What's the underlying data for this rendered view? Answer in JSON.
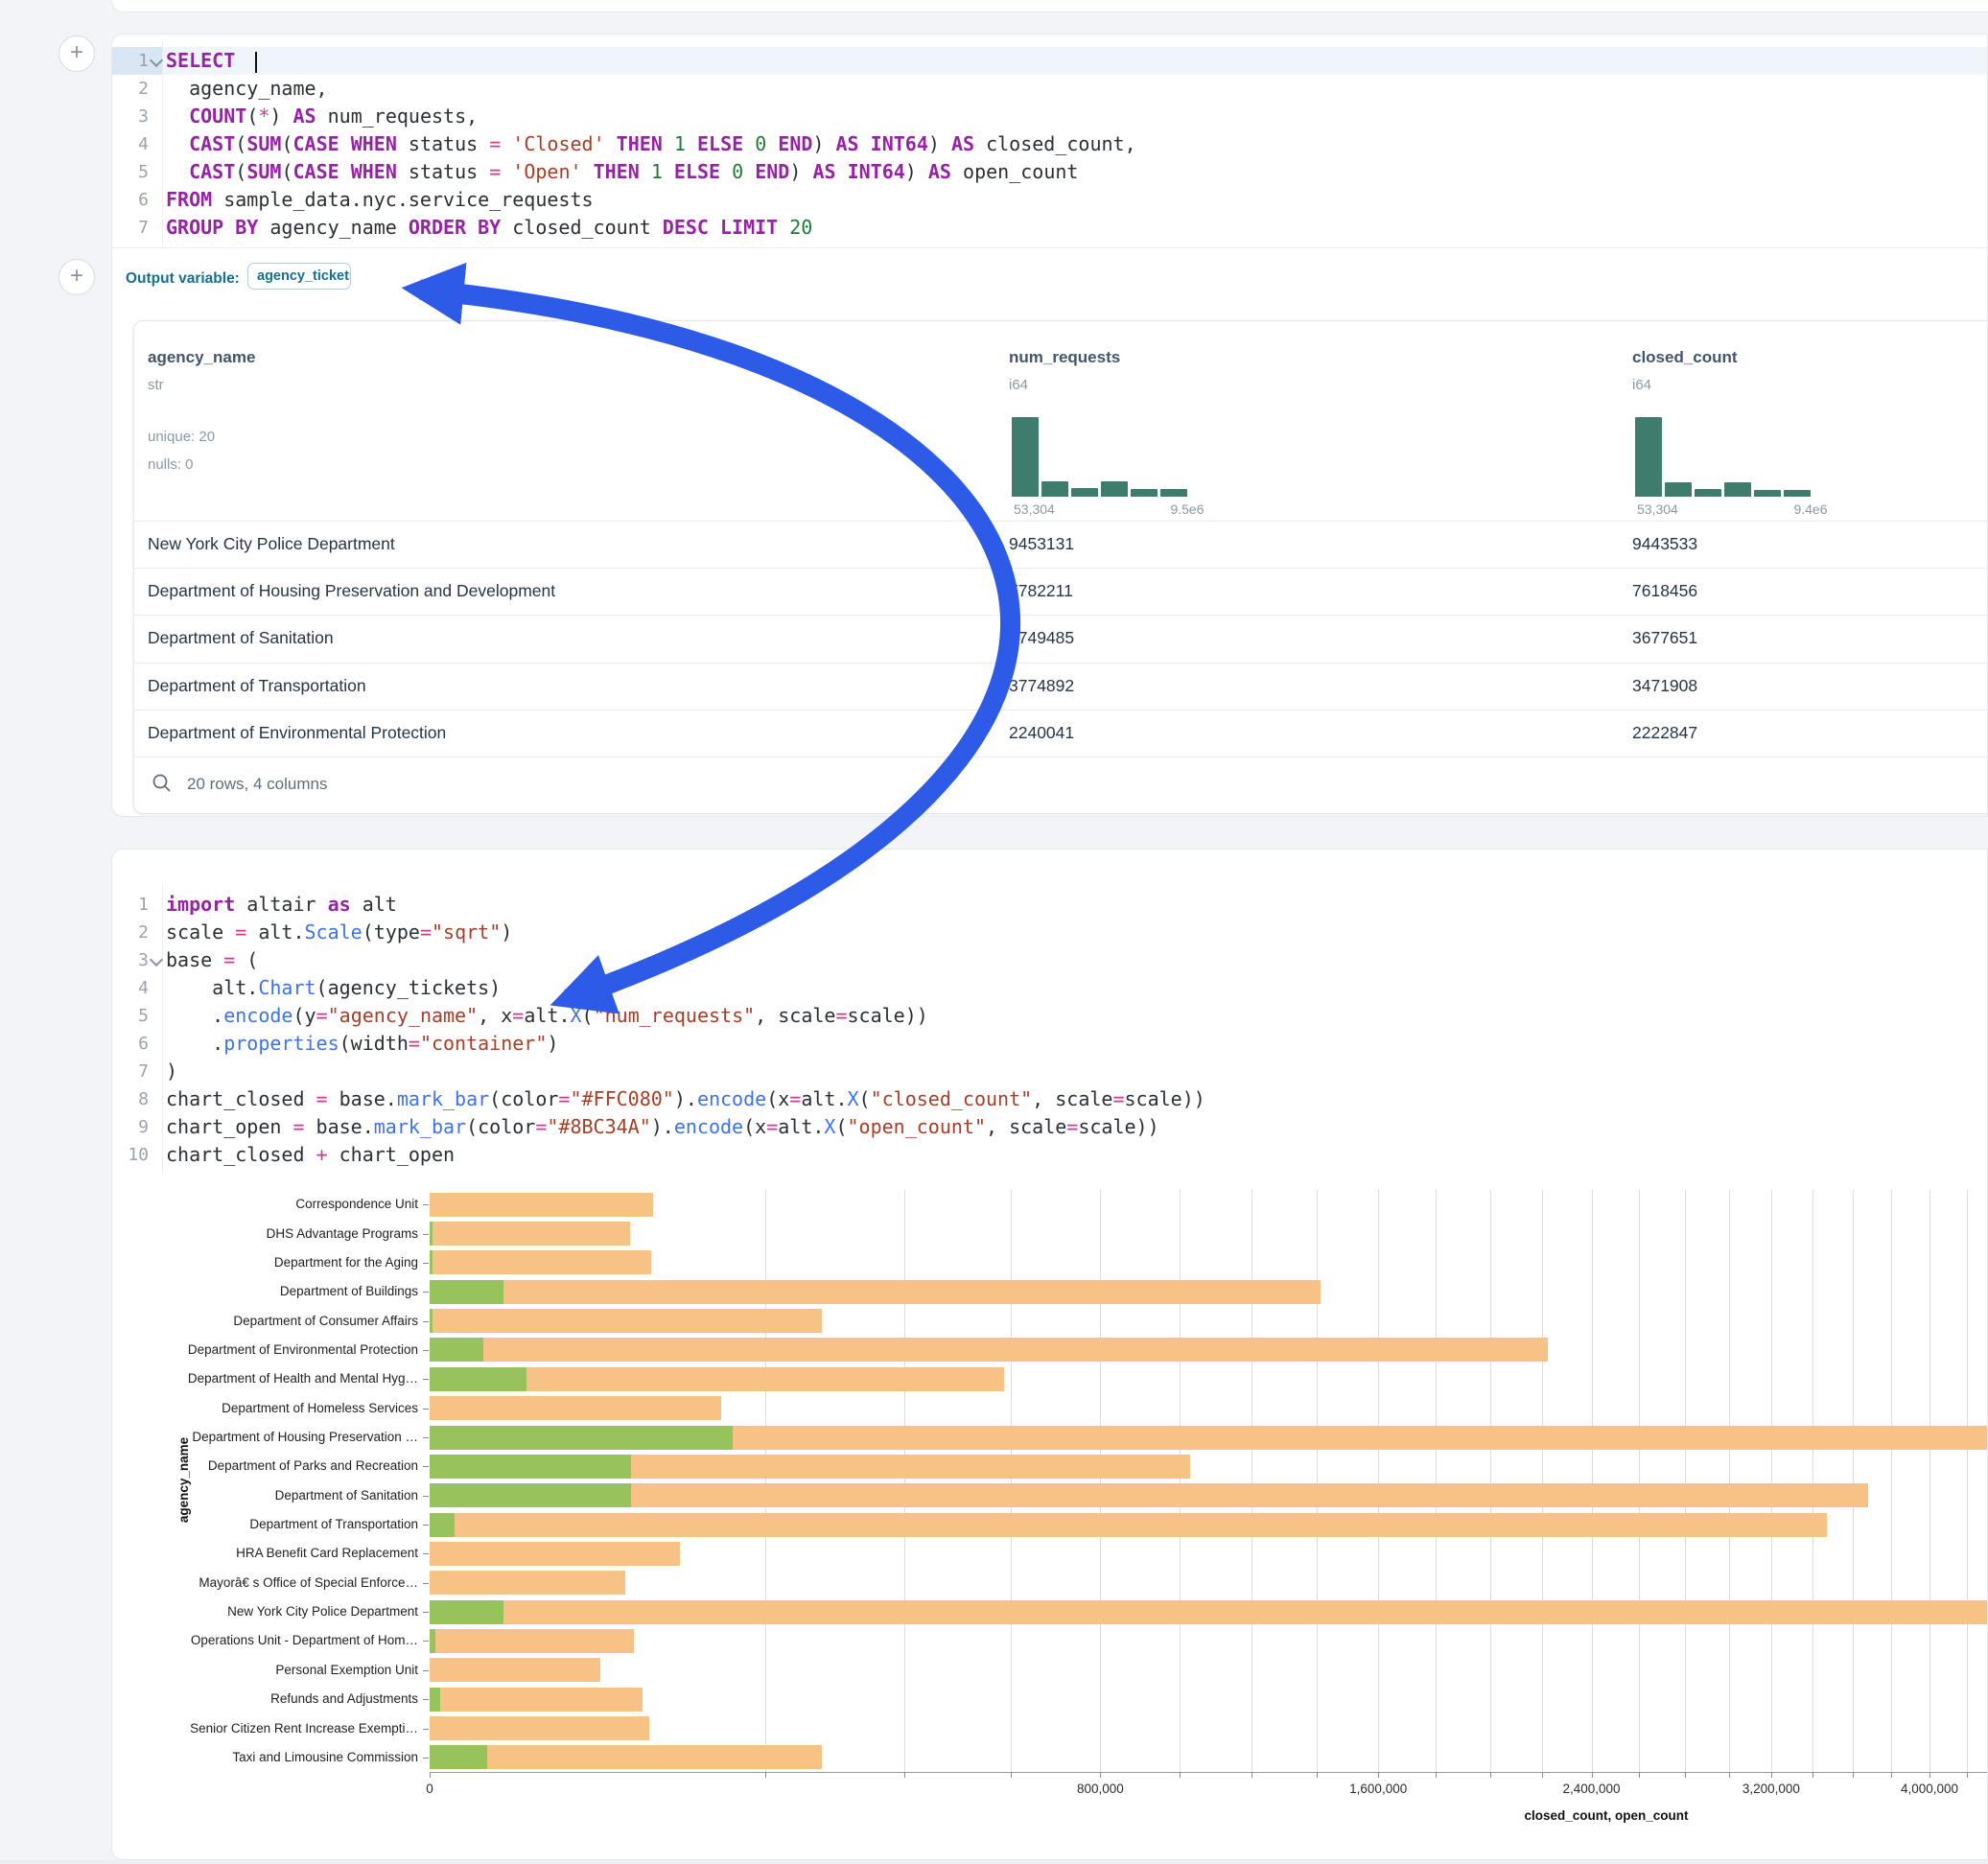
{
  "colors": {
    "page_bg": "#F2F4F7",
    "accent_arrow_blue": "#2D5BE7",
    "output_var_teal": "#14708E",
    "histogram_teal": "#3E7D6E",
    "bar_closed_rendered": "#F6C286",
    "bar_open_rendered": "#98C35C",
    "code_keyword": "#9623A5",
    "code_function": "#3E73E8",
    "code_string": "#A73E28",
    "code_number": "#1F7A38"
  },
  "add_buttons": {
    "label": "+"
  },
  "sql_cell": {
    "lines": [
      [
        [
          "kw",
          "SELECT"
        ],
        [
          "pl",
          " "
        ],
        [
          "cur",
          ""
        ]
      ],
      [
        [
          "pl",
          "  agency_name,"
        ]
      ],
      [
        [
          "pl",
          "  "
        ],
        [
          "kw",
          "COUNT"
        ],
        [
          "pl",
          "("
        ],
        [
          "op",
          "*"
        ],
        [
          "pl",
          ") "
        ],
        [
          "kw",
          "AS"
        ],
        [
          "pl",
          " num_requests,"
        ]
      ],
      [
        [
          "pl",
          "  "
        ],
        [
          "kw",
          "CAST"
        ],
        [
          "pl",
          "("
        ],
        [
          "kw",
          "SUM"
        ],
        [
          "pl",
          "("
        ],
        [
          "kw",
          "CASE"
        ],
        [
          "pl",
          " "
        ],
        [
          "kw",
          "WHEN"
        ],
        [
          "pl",
          " status "
        ],
        [
          "op",
          "="
        ],
        [
          "pl",
          " "
        ],
        [
          "str",
          "'Closed'"
        ],
        [
          "pl",
          " "
        ],
        [
          "kw",
          "THEN"
        ],
        [
          "pl",
          " "
        ],
        [
          "num",
          "1"
        ],
        [
          "pl",
          " "
        ],
        [
          "kw",
          "ELSE"
        ],
        [
          "pl",
          " "
        ],
        [
          "num",
          "0"
        ],
        [
          "pl",
          " "
        ],
        [
          "kw",
          "END"
        ],
        [
          "pl",
          ") "
        ],
        [
          "kw",
          "AS"
        ],
        [
          "pl",
          " "
        ],
        [
          "kw",
          "INT64"
        ],
        [
          "pl",
          ") "
        ],
        [
          "kw",
          "AS"
        ],
        [
          "pl",
          " closed_count,"
        ]
      ],
      [
        [
          "pl",
          "  "
        ],
        [
          "kw",
          "CAST"
        ],
        [
          "pl",
          "("
        ],
        [
          "kw",
          "SUM"
        ],
        [
          "pl",
          "("
        ],
        [
          "kw",
          "CASE"
        ],
        [
          "pl",
          " "
        ],
        [
          "kw",
          "WHEN"
        ],
        [
          "pl",
          " status "
        ],
        [
          "op",
          "="
        ],
        [
          "pl",
          " "
        ],
        [
          "str",
          "'Open'"
        ],
        [
          "pl",
          " "
        ],
        [
          "kw",
          "THEN"
        ],
        [
          "pl",
          " "
        ],
        [
          "num",
          "1"
        ],
        [
          "pl",
          " "
        ],
        [
          "kw",
          "ELSE"
        ],
        [
          "pl",
          " "
        ],
        [
          "num",
          "0"
        ],
        [
          "pl",
          " "
        ],
        [
          "kw",
          "END"
        ],
        [
          "pl",
          ") "
        ],
        [
          "kw",
          "AS"
        ],
        [
          "pl",
          " "
        ],
        [
          "kw",
          "INT64"
        ],
        [
          "pl",
          ") "
        ],
        [
          "kw",
          "AS"
        ],
        [
          "pl",
          " open_count"
        ]
      ],
      [
        [
          "kw",
          "FROM"
        ],
        [
          "pl",
          " sample_data.nyc.service_requests"
        ]
      ],
      [
        [
          "kw",
          "GROUP BY"
        ],
        [
          "pl",
          " agency_name "
        ],
        [
          "kw",
          "ORDER BY"
        ],
        [
          "pl",
          " closed_count "
        ],
        [
          "kw",
          "DESC"
        ],
        [
          "pl",
          " "
        ],
        [
          "kw",
          "LIMIT"
        ],
        [
          "pl",
          " "
        ],
        [
          "num",
          "20"
        ]
      ]
    ],
    "active_line": 1,
    "fold_line": 1,
    "output_variable_label": "Output variable:",
    "output_variable_value": "agency_tickets"
  },
  "result_table": {
    "columns": [
      {
        "name": "agency_name",
        "type": "str",
        "meta": [
          "unique: 20",
          "nulls: 0"
        ]
      },
      {
        "name": "num_requests",
        "type": "i64",
        "hist": {
          "bars_pct": [
            100,
            19,
            11,
            19,
            10,
            10
          ],
          "min_label": "53,304",
          "max_label": "9.5e6"
        }
      },
      {
        "name": "closed_count",
        "type": "i64",
        "hist": {
          "bars_pct": [
            100,
            18,
            10,
            18,
            9,
            9
          ],
          "min_label": "53,304",
          "max_label": "9.4e6"
        }
      }
    ],
    "rows": [
      [
        "New York City Police Department",
        "9453131",
        "9443533"
      ],
      [
        "Department of Housing Preservation and Development",
        "7782211",
        "7618456"
      ],
      [
        "Department of Sanitation",
        "3749485",
        "3677651"
      ],
      [
        "Department of Transportation",
        "3774892",
        "3471908"
      ],
      [
        "Department of Environmental Protection",
        "2240041",
        "2222847"
      ]
    ],
    "footer": "20 rows, 4 columns"
  },
  "py_cell": {
    "lines": [
      [
        [
          "kw",
          "import"
        ],
        [
          "pl",
          " altair "
        ],
        [
          "kw",
          "as"
        ],
        [
          "pl",
          " alt"
        ]
      ],
      [
        [
          "pl",
          "scale "
        ],
        [
          "op",
          "="
        ],
        [
          "pl",
          " alt."
        ],
        [
          "fn",
          "Scale"
        ],
        [
          "pl",
          "(type"
        ],
        [
          "op",
          "="
        ],
        [
          "str",
          "\"sqrt\""
        ],
        [
          "pl",
          ")"
        ]
      ],
      [
        [
          "pl",
          "base "
        ],
        [
          "op",
          "="
        ],
        [
          "pl",
          " ("
        ]
      ],
      [
        [
          "pl",
          "    alt."
        ],
        [
          "fn",
          "Chart"
        ],
        [
          "pl",
          "(agency_tickets)"
        ]
      ],
      [
        [
          "pl",
          "    ."
        ],
        [
          "fn",
          "encode"
        ],
        [
          "pl",
          "(y"
        ],
        [
          "op",
          "="
        ],
        [
          "str",
          "\"agency_name\""
        ],
        [
          "pl",
          ", x"
        ],
        [
          "op",
          "="
        ],
        [
          "pl",
          "alt."
        ],
        [
          "fn",
          "X"
        ],
        [
          "pl",
          "("
        ],
        [
          "str",
          "\"num_requests\""
        ],
        [
          "pl",
          ", scale"
        ],
        [
          "op",
          "="
        ],
        [
          "pl",
          "scale))"
        ]
      ],
      [
        [
          "pl",
          "    ."
        ],
        [
          "fn",
          "properties"
        ],
        [
          "pl",
          "(width"
        ],
        [
          "op",
          "="
        ],
        [
          "str",
          "\"container\""
        ],
        [
          "pl",
          ")"
        ]
      ],
      [
        [
          "pl",
          ")"
        ]
      ],
      [
        [
          "pl",
          "chart_closed "
        ],
        [
          "op",
          "="
        ],
        [
          "pl",
          " base."
        ],
        [
          "fn",
          "mark_bar"
        ],
        [
          "pl",
          "(color"
        ],
        [
          "op",
          "="
        ],
        [
          "str",
          "\"#FFC080\""
        ],
        [
          "pl",
          ")."
        ],
        [
          "fn",
          "encode"
        ],
        [
          "pl",
          "(x"
        ],
        [
          "op",
          "="
        ],
        [
          "pl",
          "alt."
        ],
        [
          "fn",
          "X"
        ],
        [
          "pl",
          "("
        ],
        [
          "str",
          "\"closed_count\""
        ],
        [
          "pl",
          ", scale"
        ],
        [
          "op",
          "="
        ],
        [
          "pl",
          "scale))"
        ]
      ],
      [
        [
          "pl",
          "chart_open "
        ],
        [
          "op",
          "="
        ],
        [
          "pl",
          " base."
        ],
        [
          "fn",
          "mark_bar"
        ],
        [
          "pl",
          "(color"
        ],
        [
          "op",
          "="
        ],
        [
          "str",
          "\"#8BC34A\""
        ],
        [
          "pl",
          ")."
        ],
        [
          "fn",
          "encode"
        ],
        [
          "pl",
          "(x"
        ],
        [
          "op",
          "="
        ],
        [
          "pl",
          "alt."
        ],
        [
          "fn",
          "X"
        ],
        [
          "pl",
          "("
        ],
        [
          "str",
          "\"open_count\""
        ],
        [
          "pl",
          ", scale"
        ],
        [
          "op",
          "="
        ],
        [
          "pl",
          "scale))"
        ]
      ],
      [
        [
          "pl",
          "chart_closed "
        ],
        [
          "op",
          "+"
        ],
        [
          "pl",
          " chart_open"
        ]
      ]
    ],
    "fold_line": 3
  },
  "chart_data": {
    "type": "bar",
    "orientation": "horizontal",
    "x_scale": "sqrt",
    "xlabel": "closed_count, open_count",
    "ylabel": "agency_name",
    "grid": true,
    "categories": [
      "Correspondence Unit",
      "DHS Advantage Programs",
      "Department for the Aging",
      "Department of Buildings",
      "Department of Consumer Affairs",
      "Department of Environmental Protection",
      "Department of Health and Mental Hyg…",
      "Department of Homeless Services",
      "Department of Housing Preservation …",
      "Department of Parks and Recreation",
      "Department of Sanitation",
      "Department of Transportation",
      "HRA Benefit Card Replacement",
      "Mayorâ€ s Office of Special Enforce…",
      "New York City Police Department",
      "Operations Unit - Department of Hom…",
      "Personal Exemption Unit",
      "Refunds and Adjustments",
      "Senior Citizen Rent Increase Exempti…",
      "Taxi and Limousine Commission"
    ],
    "series": [
      {
        "name": "closed_count",
        "color": "#FFC080",
        "values": [
          89000,
          71500,
          87500,
          1411000,
          273500,
          2222847,
          587000,
          151000,
          7618456,
          1029000,
          3677651,
          3471908,
          111000,
          68000,
          9443533,
          74200,
          51900,
          80500,
          85800,
          273500
        ]
      },
      {
        "name": "open_count",
        "color": "#8BC34A",
        "values": [
          0,
          15,
          15,
          9800,
          10,
          5100,
          16600,
          0,
          163755,
          72000,
          71834,
          1100,
          0,
          0,
          9598,
          60,
          0,
          200,
          0,
          5900
        ]
      }
    ],
    "x_ticks": [
      {
        "value": 0,
        "label": "0"
      },
      {
        "value": 800000,
        "label": "800,000"
      },
      {
        "value": 1600000,
        "label": "1,600,000"
      },
      {
        "value": 2400000,
        "label": "2,400,000"
      },
      {
        "value": 3200000,
        "label": "3,200,000"
      },
      {
        "value": 4000000,
        "label": "4,000,000"
      }
    ],
    "minor_tick_step": 200000,
    "xlim": [
      0,
      4400000
    ]
  }
}
